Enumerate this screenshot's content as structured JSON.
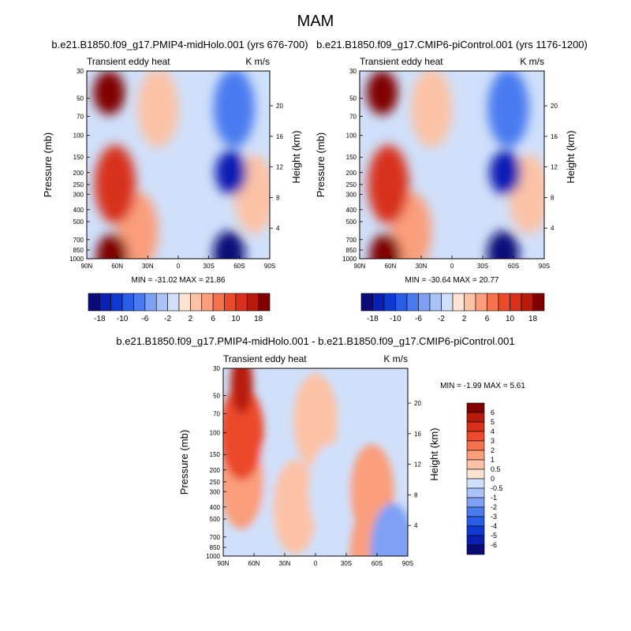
{
  "figure": {
    "title": "MAM",
    "diff_title": "b.e21.B1850.f09_g17.PMIP4-midHolo.001 - b.e21.B1850.f09_g17.CMIP6-piControl.001"
  },
  "chart_data": [
    {
      "type": "contour",
      "case": "b.e21.B1850.f09_g17.PMIP4-midHolo.001 (yrs 676-700)",
      "left_label": "Transient eddy heat",
      "units": "K m/s",
      "xlabel": "",
      "ylabel": "Pressure (mb)",
      "y2label": "Height (km)",
      "xlim": [
        90,
        -90
      ],
      "ylim": [
        1000,
        30
      ],
      "x_ticks": [
        "90N",
        "60N",
        "30N",
        "0",
        "30S",
        "60S",
        "90S"
      ],
      "y_ticks": [
        30,
        50,
        70,
        100,
        150,
        200,
        250,
        300,
        400,
        500,
        700,
        850,
        1000
      ],
      "height_ticks": [
        4,
        8,
        12,
        16,
        20
      ],
      "stats": "MIN = -31.02  MAX =  21.86",
      "features": [
        {
          "lat": 68,
          "p": 45,
          "value": 20
        },
        {
          "lat": 65,
          "p": 950,
          "value": 21.86
        },
        {
          "lat": 62,
          "p": 250,
          "value": 10
        },
        {
          "lat": 40,
          "p": 600,
          "value": 4
        },
        {
          "lat": 20,
          "p": 60,
          "value": 1
        },
        {
          "lat": -52,
          "p": 200,
          "value": -20
        },
        {
          "lat": -50,
          "p": 900,
          "value": -31.02
        },
        {
          "lat": -55,
          "p": 60,
          "value": -8
        },
        {
          "lat": -75,
          "p": 300,
          "value": 1
        }
      ]
    },
    {
      "type": "contour",
      "case": "b.e21.B1850.f09_g17.CMIP6-piControl.001 (yrs 1176-1200)",
      "left_label": "Transient eddy heat",
      "units": "K m/s",
      "xlabel": "",
      "ylabel": "Pressure (mb)",
      "y2label": "Height (km)",
      "xlim": [
        90,
        -90
      ],
      "ylim": [
        1000,
        30
      ],
      "x_ticks": [
        "90N",
        "60N",
        "30N",
        "0",
        "30S",
        "60S",
        "90S"
      ],
      "y_ticks": [
        30,
        50,
        70,
        100,
        150,
        200,
        250,
        300,
        400,
        500,
        700,
        850,
        1000
      ],
      "height_ticks": [
        4,
        8,
        12,
        16,
        20
      ],
      "stats": "MIN = -30.64  MAX =  20.77",
      "features": [
        {
          "lat": 68,
          "p": 45,
          "value": 18
        },
        {
          "lat": 65,
          "p": 950,
          "value": 20.77
        },
        {
          "lat": 62,
          "p": 250,
          "value": 10
        },
        {
          "lat": 40,
          "p": 600,
          "value": 4
        },
        {
          "lat": 20,
          "p": 60,
          "value": 1
        },
        {
          "lat": -52,
          "p": 200,
          "value": -20
        },
        {
          "lat": -50,
          "p": 900,
          "value": -30.64
        },
        {
          "lat": -55,
          "p": 60,
          "value": -8
        },
        {
          "lat": -75,
          "p": 300,
          "value": 1
        }
      ]
    },
    {
      "type": "contour",
      "case": "difference",
      "left_label": "Transient eddy heat",
      "units": "K m/s",
      "xlabel": "",
      "ylabel": "Pressure (mb)",
      "y2label": "Height (km)",
      "xlim": [
        90,
        -90
      ],
      "ylim": [
        1000,
        30
      ],
      "x_ticks": [
        "90N",
        "60N",
        "30N",
        "0",
        "30S",
        "60S",
        "90S"
      ],
      "y_ticks": [
        30,
        50,
        70,
        100,
        150,
        200,
        250,
        300,
        400,
        500,
        700,
        850,
        1000
      ],
      "height_ticks": [
        4,
        8,
        12,
        16,
        20
      ],
      "stats": "MIN =  -1.99  MAX =   5.61",
      "features": [
        {
          "lat": 72,
          "p": 40,
          "value": 5.61
        },
        {
          "lat": 72,
          "p": 100,
          "value": 3
        },
        {
          "lat": 72,
          "p": 250,
          "value": 1.5
        },
        {
          "lat": 50,
          "p": 300,
          "value": -0.5
        },
        {
          "lat": 20,
          "p": 400,
          "value": 0.5
        },
        {
          "lat": 0,
          "p": 80,
          "value": 0.5
        },
        {
          "lat": -15,
          "p": 300,
          "value": -0.5
        },
        {
          "lat": -55,
          "p": 300,
          "value": 1
        },
        {
          "lat": -55,
          "p": 950,
          "value": 1
        },
        {
          "lat": -75,
          "p": 900,
          "value": -1.99
        }
      ]
    }
  ],
  "colorbars": [
    {
      "orientation": "horizontal",
      "labels": [
        "-18",
        "-10",
        "-6",
        "-2",
        "2",
        "6",
        "10",
        "18"
      ],
      "colors": [
        "#0a0a78",
        "#0a1fb4",
        "#0f3ad2",
        "#2a5de6",
        "#4a7af0",
        "#7ea0f5",
        "#a9c3f8",
        "#d0e0fa",
        "#fde3d4",
        "#fcc2a6",
        "#fa9e7c",
        "#f6724f",
        "#ec4a2b",
        "#d8301a",
        "#b81a0c",
        "#800000"
      ]
    },
    {
      "orientation": "horizontal",
      "labels": [
        "-18",
        "-10",
        "-6",
        "-2",
        "2",
        "6",
        "10",
        "18"
      ],
      "colors": [
        "#0a0a78",
        "#0a1fb4",
        "#0f3ad2",
        "#2a5de6",
        "#4a7af0",
        "#7ea0f5",
        "#a9c3f8",
        "#d0e0fa",
        "#fde3d4",
        "#fcc2a6",
        "#fa9e7c",
        "#f6724f",
        "#ec4a2b",
        "#d8301a",
        "#b81a0c",
        "#800000"
      ]
    },
    {
      "orientation": "vertical",
      "labels": [
        "6",
        "5",
        "4",
        "3",
        "2",
        "1",
        "0.5",
        "0",
        "-0.5",
        "-1",
        "-2",
        "-3",
        "-4",
        "-5",
        "-6"
      ],
      "colors": [
        "#800000",
        "#b81a0c",
        "#d8301a",
        "#ec4a2b",
        "#f6724f",
        "#fa9e7c",
        "#fcc2a6",
        "#fde3d4",
        "#d0e0fa",
        "#a9c3f8",
        "#7ea0f5",
        "#4a7af0",
        "#2a5de6",
        "#0f3ad2",
        "#0a1fb4",
        "#0a0a78"
      ]
    }
  ]
}
